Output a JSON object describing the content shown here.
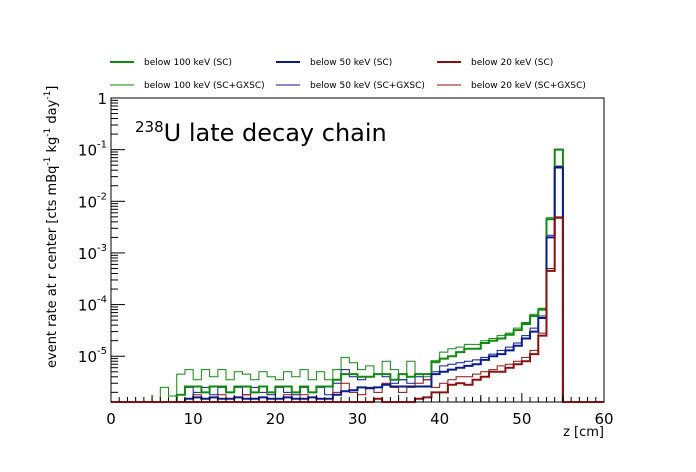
{
  "chart_data": {
    "type": "line",
    "title_sup": "238",
    "title_main": "U late decay chain",
    "xlabel": "z [cm]",
    "ylabel": "event rate at r center [cts mBq",
    "ylabel_parts": [
      "event rate at r center [cts mBq",
      "-1",
      " kg",
      "-1",
      " day",
      "-1",
      "]"
    ],
    "xlim": [
      0,
      60
    ],
    "ylim": [
      1.3e-06,
      1.0
    ],
    "yscale": "log",
    "x_ticks": [
      0,
      10,
      20,
      30,
      40,
      50,
      60
    ],
    "x_tick_labels": [
      "0",
      "10",
      "20",
      "30",
      "40",
      "50",
      "60"
    ],
    "y_ticks": [
      {
        "value": 1,
        "base": "1",
        "exp": ""
      },
      {
        "value": 0.1,
        "base": "10",
        "exp": "-1"
      },
      {
        "value": 0.01,
        "base": "10",
        "exp": "-2"
      },
      {
        "value": 0.001,
        "base": "10",
        "exp": "-3"
      },
      {
        "value": 0.0001,
        "base": "10",
        "exp": "-4"
      },
      {
        "value": 1e-05,
        "base": "10",
        "exp": "-5"
      }
    ],
    "bin_width": 1,
    "x_start": 0,
    "series": [
      {
        "name": "below 100 keV (SC)",
        "color": "#118811",
        "thick": true,
        "values": [
          0,
          0,
          0,
          0,
          0,
          0,
          0,
          0,
          1.8e-06,
          2.6e-06,
          2.6e-06,
          2e-06,
          2.6e-06,
          2.6e-06,
          2e-06,
          2.6e-06,
          2.6e-06,
          2e-06,
          2.6e-06,
          2e-06,
          2.6e-06,
          2.6e-06,
          2e-06,
          2.6e-06,
          2e-06,
          2.6e-06,
          2.6e-06,
          3.5e-06,
          4.5e-06,
          4.5e-06,
          4e-06,
          4e-06,
          4.5e-06,
          4.5e-06,
          3.5e-06,
          4.5e-06,
          4e-06,
          4.5e-06,
          4.5e-06,
          8e-06,
          9e-06,
          1e-05,
          1.2e-05,
          1.4e-05,
          1.4e-05,
          1.8e-05,
          2e-05,
          2.2e-05,
          2.6e-05,
          3.2e-05,
          4.2e-05,
          6e-05,
          8e-05,
          0.0045,
          0.1,
          0,
          0,
          0,
          0,
          0
        ]
      },
      {
        "name": "below 50 keV (SC)",
        "color": "#0b1a8a",
        "thick": true,
        "values": [
          0,
          0,
          0,
          0,
          0,
          0,
          0,
          0,
          0,
          1.5e-06,
          1.6e-06,
          1.5e-06,
          1.6e-06,
          1.5e-06,
          1.5e-06,
          1.6e-06,
          1.5e-06,
          1.5e-06,
          1.6e-06,
          1.5e-06,
          1.5e-06,
          1.6e-06,
          1.5e-06,
          1.5e-06,
          1.6e-06,
          1.5e-06,
          1.5e-06,
          1.8e-06,
          2.1e-06,
          2.2e-06,
          2.5e-06,
          2.4e-06,
          2.5e-06,
          2.8e-06,
          2.6e-06,
          2.6e-06,
          2.6e-06,
          2.6e-06,
          2.6e-06,
          4.5e-06,
          5e-06,
          5.5e-06,
          6e-06,
          6.5e-06,
          7e-06,
          8.5e-06,
          1e-05,
          1.1e-05,
          1.3e-05,
          1.6e-05,
          2.2e-05,
          3e-05,
          5.5e-05,
          0.002,
          0.045,
          0,
          0,
          0,
          0,
          0
        ]
      },
      {
        "name": "below 20 keV (SC)",
        "color": "#8a1010",
        "thick": true,
        "values": [
          0,
          0,
          0,
          0,
          0,
          0,
          0,
          0,
          0,
          0,
          1.3e-06,
          0,
          0,
          1.3e-06,
          0,
          1.3e-06,
          0,
          0,
          0,
          0,
          0,
          0,
          0,
          1.3e-06,
          0,
          0,
          0,
          0,
          0,
          0,
          0,
          0,
          1.5e-06,
          0,
          0,
          0,
          0,
          1.5e-06,
          1.6e-06,
          2e-06,
          2e-06,
          2.8e-06,
          3e-06,
          2.8e-06,
          3.5e-06,
          4e-06,
          5e-06,
          5e-06,
          6e-06,
          7e-06,
          8e-06,
          1.1e-05,
          2.5e-05,
          0.00045,
          0.0048,
          0,
          0,
          0,
          0,
          0
        ]
      },
      {
        "name": "below 100 keV (SC+GXSC)",
        "color": "#118811",
        "thick": false,
        "values": [
          0,
          0,
          0,
          0,
          0,
          0,
          2.5e-06,
          1.7e-06,
          4.5e-06,
          5.5e-06,
          3.5e-06,
          5.5e-06,
          4e-06,
          5.5e-06,
          3.5e-06,
          5e-06,
          4.5e-06,
          3.5e-06,
          5e-06,
          4e-06,
          3.5e-06,
          5e-06,
          4e-06,
          5.5e-06,
          3.5e-06,
          5e-06,
          3.5e-06,
          5.5e-06,
          9.5e-06,
          7.5e-06,
          5.5e-06,
          6.5e-06,
          4.5e-06,
          8e-06,
          5.5e-06,
          3.5e-06,
          8e-06,
          4.5e-06,
          4e-06,
          7.5e-06,
          1.2e-05,
          1.4e-05,
          1.5e-05,
          1.7e-05,
          1.7e-05,
          2e-05,
          2.2e-05,
          2.5e-05,
          2.8e-05,
          3.5e-05,
          4.5e-05,
          6.5e-05,
          8.5e-05,
          0.0048,
          0.102,
          0,
          0,
          0,
          0,
          0
        ]
      },
      {
        "name": "below 50 keV (SC+GXSC)",
        "color": "#0b1a8a",
        "thick": false,
        "values": [
          0,
          0,
          0,
          0,
          0,
          0,
          0,
          0,
          1.8e-06,
          2.5e-06,
          2e-06,
          2.5e-06,
          1.8e-06,
          2.5e-06,
          2e-06,
          2.5e-06,
          1.8e-06,
          2.5e-06,
          2e-06,
          1.8e-06,
          2.5e-06,
          2e-06,
          1.8e-06,
          2.5e-06,
          2e-06,
          2.5e-06,
          1.8e-06,
          3e-06,
          5.5e-06,
          4e-06,
          3.5e-06,
          4e-06,
          4.5e-06,
          4e-06,
          3e-06,
          3.5e-06,
          3e-06,
          4e-06,
          3.5e-06,
          5e-06,
          6.5e-06,
          7e-06,
          7.5e-06,
          8e-06,
          8.5e-06,
          9.5e-06,
          1.1e-05,
          1.3e-05,
          1.5e-05,
          1.8e-05,
          2.5e-05,
          3.5e-05,
          6e-05,
          0.0022,
          0.048,
          0,
          0,
          0,
          0,
          0
        ]
      },
      {
        "name": "below 20 keV (SC+GXSC)",
        "color": "#8a1010",
        "thick": false,
        "values": [
          0,
          0,
          0,
          0,
          0,
          0,
          0,
          0,
          0,
          1.5e-06,
          1.8e-06,
          1.5e-06,
          0,
          1.8e-06,
          1.5e-06,
          0,
          1.8e-06,
          1.5e-06,
          0,
          1.5e-06,
          0,
          1.8e-06,
          1.5e-06,
          1.8e-06,
          0,
          1.5e-06,
          0,
          2e-06,
          3e-06,
          2e-06,
          1.8e-06,
          2.5e-06,
          2e-06,
          3e-06,
          2.5e-06,
          2e-06,
          2.5e-06,
          3e-06,
          3.5e-06,
          2.5e-06,
          3e-06,
          3.5e-06,
          4e-06,
          4e-06,
          4.5e-06,
          5e-06,
          5.5e-06,
          6.5e-06,
          7e-06,
          8e-06,
          9.5e-06,
          1.3e-05,
          2.8e-05,
          0.0005,
          0.005,
          0,
          0,
          0,
          0,
          0
        ]
      }
    ]
  }
}
